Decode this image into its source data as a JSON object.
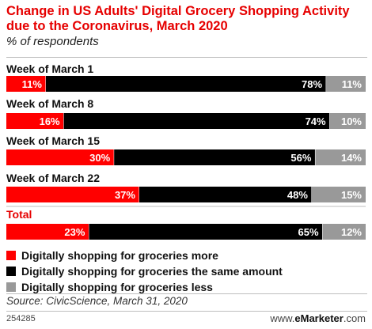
{
  "header": {
    "title": "Change in US Adults' Digital Grocery Shopping Activity due to the Coronavirus, March 2020",
    "subtitle": "% of respondents"
  },
  "chart_data": {
    "type": "bar",
    "orientation": "horizontal",
    "stacked": true,
    "normalized": true,
    "categories": [
      "Week of March 1",
      "Week of March 8",
      "Week of March 15",
      "Week of March 22",
      "Total"
    ],
    "category_label_colors": [
      "#111111",
      "#111111",
      "#111111",
      "#111111",
      "#e60000"
    ],
    "series": [
      {
        "name": "Digitally shopping for groceries more",
        "color": "#ff0000",
        "values": [
          11,
          16,
          30,
          37,
          23
        ],
        "labels": [
          "11%",
          "16%",
          "30%",
          "37%",
          "23%"
        ]
      },
      {
        "name": "Digitally shopping for groceries the same amount",
        "color": "#000000",
        "values": [
          78,
          74,
          56,
          48,
          65
        ],
        "labels": [
          "78%",
          "74%",
          "56%",
          "48%",
          "65%"
        ]
      },
      {
        "name": "Digitally shopping for groceries less",
        "color": "#999999",
        "values": [
          11,
          10,
          14,
          15,
          12
        ],
        "labels": [
          "11%",
          "10%",
          "14%",
          "15%",
          "12%"
        ]
      }
    ],
    "legend_position": "bottom-left",
    "grid": false
  },
  "footer": {
    "source": "Source: CivicScience, March 31, 2020",
    "chart_id": "254285",
    "brand_prefix": "www.",
    "brand_name": "eMarketer",
    "brand_suffix": ".com"
  }
}
